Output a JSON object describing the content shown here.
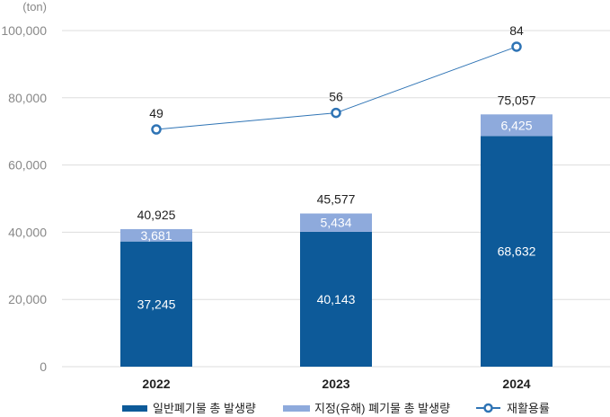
{
  "chart_data": {
    "type": "bar",
    "stacked": true,
    "unit_label": "(ton)",
    "categories": [
      "2022",
      "2023",
      "2024"
    ],
    "series": [
      {
        "name": "일반폐기물 총 발생량",
        "type": "bar",
        "color": "#0d5a99",
        "values": [
          37245,
          40143,
          68632
        ],
        "labels": [
          "37,245",
          "40,143",
          "68,632"
        ]
      },
      {
        "name": "지정(유해) 폐기물 총 발생량",
        "type": "bar",
        "color": "#8eaadc",
        "values": [
          3681,
          5434,
          6425
        ],
        "labels": [
          "3,681",
          "5,434",
          "6,425"
        ]
      },
      {
        "name": "재활용률",
        "type": "line",
        "color": "#2f74b5",
        "values": [
          49,
          56,
          84
        ],
        "labels": [
          "49",
          "56",
          "84"
        ]
      }
    ],
    "totals": [
      40925,
      45577,
      75057
    ],
    "total_labels": [
      "40,925",
      "45,577",
      "75,057"
    ],
    "ylim": [
      0,
      100000
    ],
    "yticks": [
      0,
      20000,
      40000,
      60000,
      80000,
      100000
    ],
    "ytick_labels": [
      "0",
      "20,000",
      "40,000",
      "60,000",
      "80,000",
      "100,000"
    ],
    "grid": true,
    "legend_position": "bottom"
  }
}
